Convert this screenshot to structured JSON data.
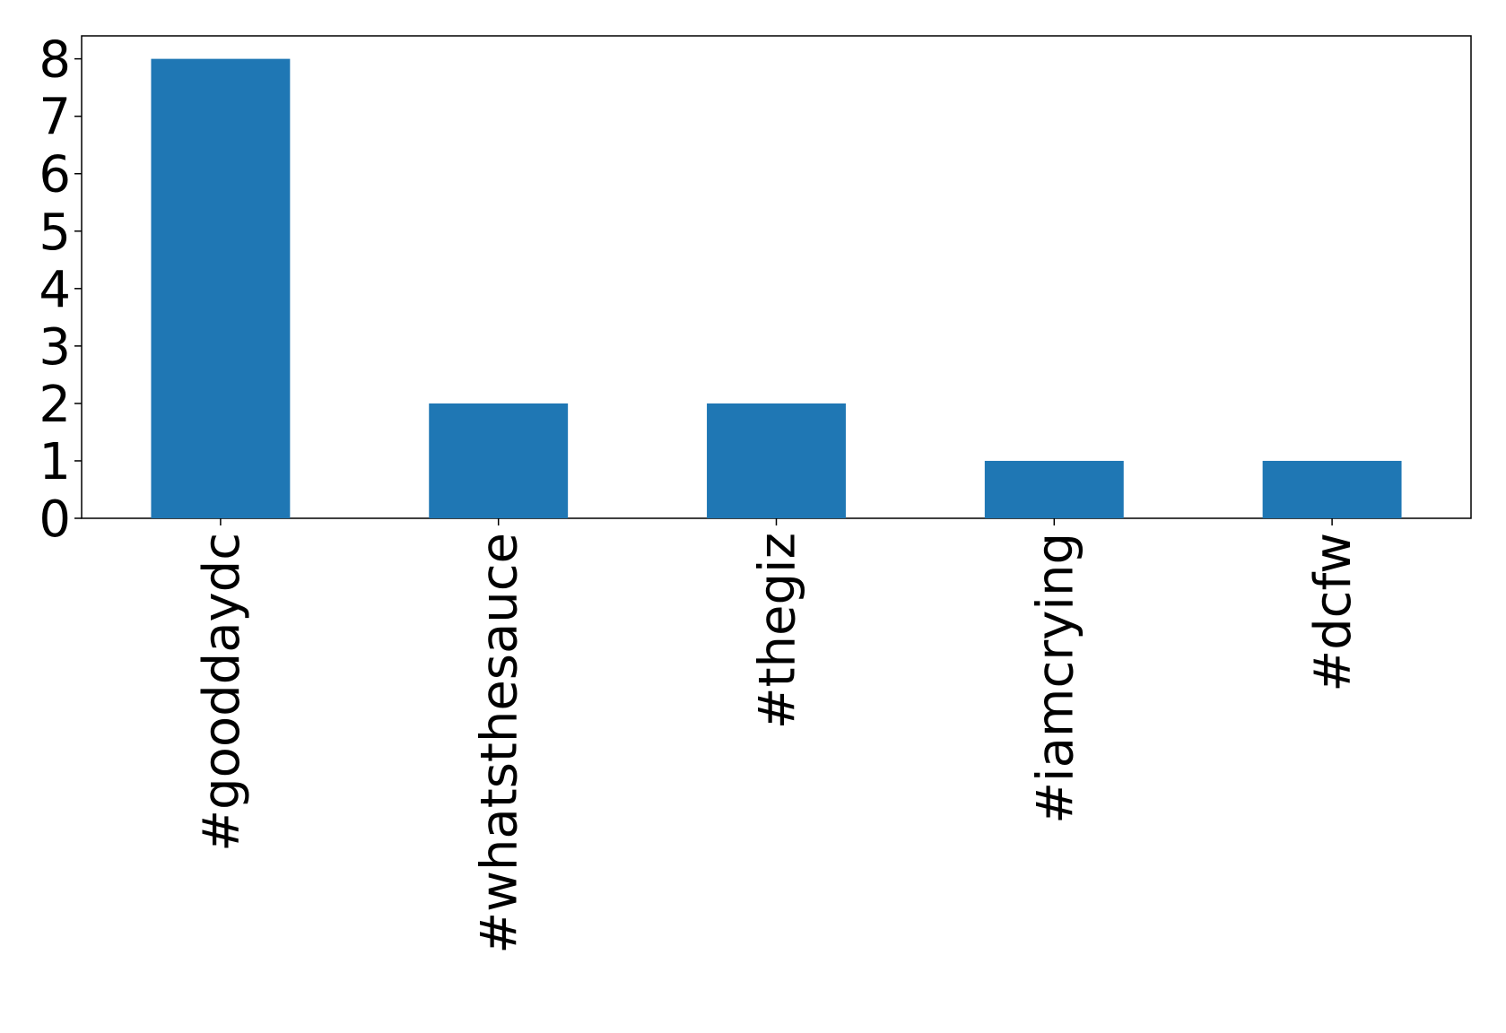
{
  "chart_data": {
    "type": "bar",
    "categories": [
      "#gooddaydc",
      "#whatsthesauce",
      "#thegiz",
      "#iamcrying",
      "#dcfw"
    ],
    "values": [
      8,
      2,
      2,
      1,
      1
    ],
    "color": "#1f77b4",
    "ylim": [
      0,
      8.4
    ],
    "yticks": [
      0,
      1,
      2,
      3,
      4,
      5,
      6,
      7,
      8
    ],
    "grid": false
  }
}
